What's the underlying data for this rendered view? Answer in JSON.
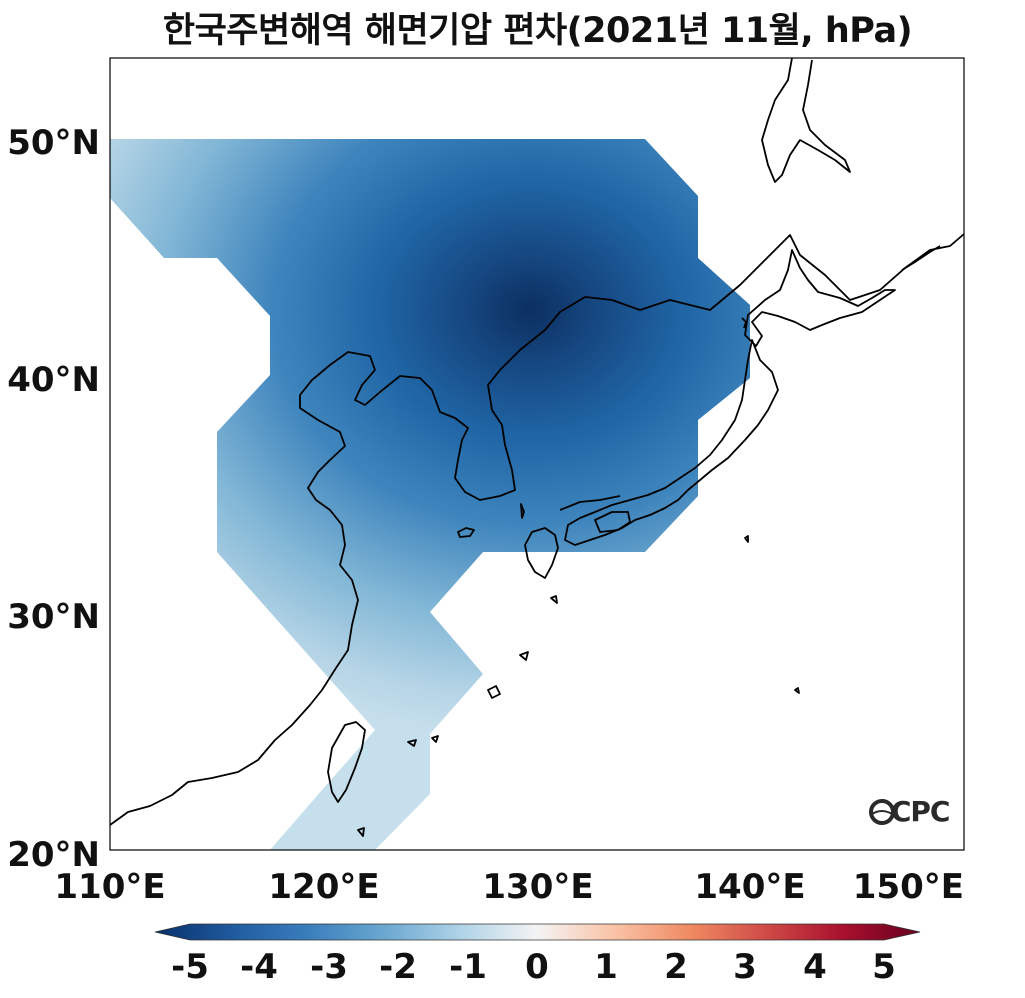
{
  "title": "한국주변해역 해면기압 편차(2021년 11월, hPa)",
  "map": {
    "lon_range": [
      110,
      150
    ],
    "lat_range": [
      20,
      53.5
    ],
    "lon_ticks": [
      "110°E",
      "120°E",
      "130°E",
      "140°E",
      "150°E"
    ],
    "lat_ticks": [
      "20°N",
      "30°N",
      "40°N",
      "50°N"
    ],
    "anomaly_min_hpa": -4.5,
    "anomaly_center": {
      "lon": 131,
      "lat": 42.5
    }
  },
  "colorbar": {
    "ticks": [
      "-5",
      "-4",
      "-3",
      "-2",
      "-1",
      "0",
      "1",
      "2",
      "3",
      "4",
      "5"
    ],
    "low_color": "#08306b",
    "mid_color": "#f7f7f7",
    "high_color": "#67001f"
  },
  "logo": "OCPC"
}
